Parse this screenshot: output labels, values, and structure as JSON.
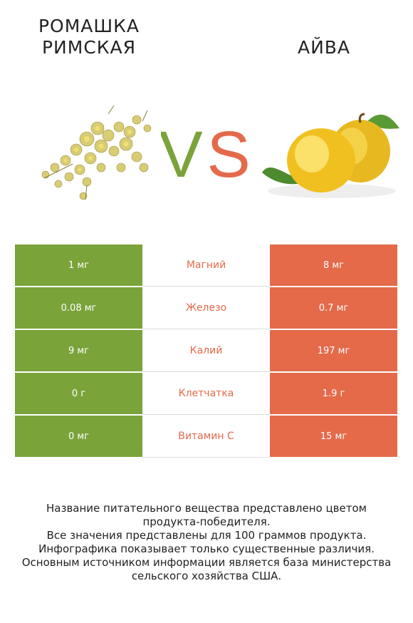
{
  "header": {
    "left_title": "Ромашка римская",
    "right_title": "айва",
    "vs_v": "V",
    "vs_s": "S"
  },
  "colors": {
    "left": "#7aa33a",
    "right": "#e46a4a"
  },
  "images": {
    "left_icon": "chamomile-flowers-image",
    "right_icon": "quince-fruit-image"
  },
  "rows": [
    {
      "left": "1 мг",
      "nutrient": "Магний",
      "right": "8 мг"
    },
    {
      "left": "0.08 мг",
      "nutrient": "Железо",
      "right": "0.7 мг"
    },
    {
      "left": "9 мг",
      "nutrient": "Калий",
      "right": "197 мг"
    },
    {
      "left": "0 г",
      "nutrient": "Клетчатка",
      "right": "1.9 г"
    },
    {
      "left": "0 мг",
      "nutrient": "Витамин C",
      "right": "15 мг"
    }
  ],
  "footnote": {
    "line1": "Название питательного вещества представлено цветом",
    "line2": "продукта-победителя.",
    "line3": "Все значения представлены для 100 граммов продукта.",
    "line4": "Инфографика показывает только существенные различия.",
    "line5": "Основным источником информации является база министерства",
    "line6": "сельского хозяйства США."
  }
}
